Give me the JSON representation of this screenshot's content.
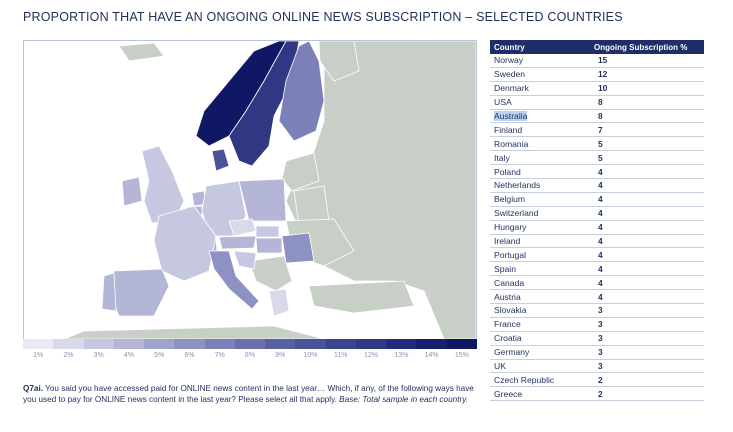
{
  "title": "PROPORTION THAT HAVE AN ONGOING ONLINE NEWS SUBSCRIPTION – SELECTED COUNTRIES",
  "legend": {
    "labels": [
      "1%",
      "2%",
      "3%",
      "4%",
      "5%",
      "6%",
      "7%",
      "8%",
      "9%",
      "10%",
      "11%",
      "12%",
      "13%",
      "14%",
      "15%"
    ],
    "colors": [
      "#e8e9f2",
      "#d8d9ea",
      "#c6c8e1",
      "#b3b6d7",
      "#a0a4cc",
      "#8d92c2",
      "#7b80b8",
      "#6a6fae",
      "#5a60a4",
      "#4b5299",
      "#3d448f",
      "#303884",
      "#242c7a",
      "#19216f",
      "#101865"
    ]
  },
  "colors": {
    "non_country": "#c8cfc7",
    "header_bg": "#1f2d68",
    "highlight": "#b9d3ef"
  },
  "table": {
    "headers": [
      "Country",
      "Ongoing Subscription %"
    ],
    "highlighted": "Australia",
    "rows": [
      {
        "country": "Norway",
        "value": "15"
      },
      {
        "country": "Sweden",
        "value": "12"
      },
      {
        "country": "Denmark",
        "value": "10"
      },
      {
        "country": "USA",
        "value": "8"
      },
      {
        "country": "Australia",
        "value": "8"
      },
      {
        "country": "Finland",
        "value": "7"
      },
      {
        "country": "Romania",
        "value": "5"
      },
      {
        "country": "Italy",
        "value": "5"
      },
      {
        "country": "Poland",
        "value": "4"
      },
      {
        "country": "Netherlands",
        "value": "4"
      },
      {
        "country": "Belgium",
        "value": "4"
      },
      {
        "country": "Switzerland",
        "value": "4"
      },
      {
        "country": "Hungary",
        "value": "4"
      },
      {
        "country": "Ireland",
        "value": "4"
      },
      {
        "country": "Portugal",
        "value": "4"
      },
      {
        "country": "Spain",
        "value": "4"
      },
      {
        "country": "Canada",
        "value": "4"
      },
      {
        "country": "Austria",
        "value": "4"
      },
      {
        "country": "Slovakia",
        "value": "3"
      },
      {
        "country": "France",
        "value": "3"
      },
      {
        "country": "Croatia",
        "value": "3"
      },
      {
        "country": "Germany",
        "value": "3"
      },
      {
        "country": "UK",
        "value": "3"
      },
      {
        "country": "Czech Republic",
        "value": "2"
      },
      {
        "country": "Greece",
        "value": "2"
      }
    ]
  },
  "footnote": {
    "question": "Q7ai.",
    "text": " You said you have accessed paid for ONLINE news content in the last year… Which, if any, of the following ways have you used to pay for ONLINE news content in the last year? Please select all that apply. ",
    "base": "Base: Total sample in each country."
  },
  "chart_data": {
    "type": "table",
    "title": "PROPORTION THAT HAVE AN ONGOING ONLINE NEWS SUBSCRIPTION – SELECTED COUNTRIES",
    "categories": [
      "Norway",
      "Sweden",
      "Denmark",
      "USA",
      "Australia",
      "Finland",
      "Romania",
      "Italy",
      "Poland",
      "Netherlands",
      "Belgium",
      "Switzerland",
      "Hungary",
      "Ireland",
      "Portugal",
      "Spain",
      "Canada",
      "Austria",
      "Slovakia",
      "France",
      "Croatia",
      "Germany",
      "UK",
      "Czech Republic",
      "Greece"
    ],
    "values": [
      15,
      12,
      10,
      8,
      8,
      7,
      5,
      5,
      4,
      4,
      4,
      4,
      4,
      4,
      4,
      4,
      4,
      4,
      3,
      3,
      3,
      3,
      3,
      2,
      2
    ],
    "legend_range": [
      1,
      15
    ]
  }
}
